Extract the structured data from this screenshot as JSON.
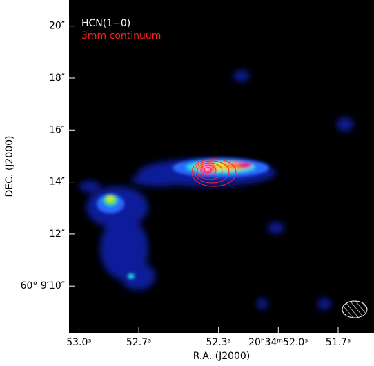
{
  "chart_data": {
    "type": "image",
    "legend": [
      {
        "name": "HCN(1−0)",
        "color": "#ffffff"
      },
      {
        "name": "3mm continuum",
        "color": "#ff2020"
      }
    ],
    "xlabel": "R.A. (J2000)",
    "ylabel": "DEC. (J2000)",
    "xlim": [
      53.05,
      51.52
    ],
    "xticks": [
      {
        "value": 53.0,
        "label": "53.0ˢ"
      },
      {
        "value": 52.7,
        "label": "52.7ˢ"
      },
      {
        "value": 52.3,
        "label": "52.3ˢ"
      },
      {
        "value": 52.0,
        "label": "20ʰ34ᵐ52.0ˢ"
      },
      {
        "value": 51.7,
        "label": "51.7ˢ"
      }
    ],
    "ylim": [
      8.2,
      21.0
    ],
    "yticks": [
      {
        "value": 10,
        "label": "60° 9′10″"
      },
      {
        "value": 12,
        "label": "12″"
      },
      {
        "value": 14,
        "label": "14″"
      },
      {
        "value": 16,
        "label": "16″"
      },
      {
        "value": 18,
        "label": "18″"
      },
      {
        "value": 20,
        "label": "20″"
      }
    ]
  }
}
